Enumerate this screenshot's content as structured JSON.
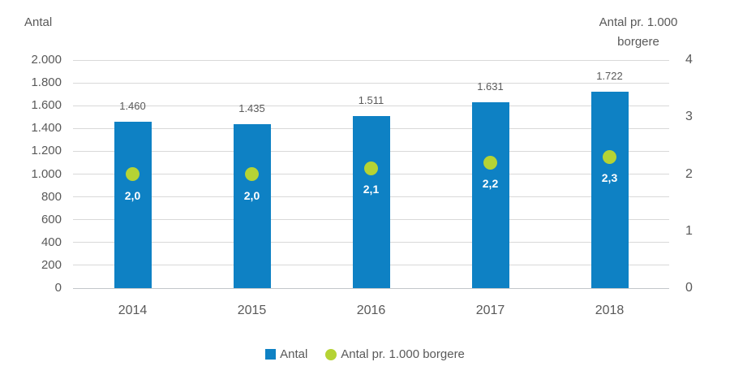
{
  "chart_data": {
    "type": "bar",
    "title": "",
    "categories": [
      "2014",
      "2015",
      "2016",
      "2017",
      "2018"
    ],
    "series": [
      {
        "name": "Antal",
        "type": "bar",
        "axis": "left",
        "values": [
          1460,
          1435,
          1511,
          1631,
          1722
        ],
        "labels": [
          "1.460",
          "1.435",
          "1.511",
          "1.631",
          "1.722"
        ],
        "color": "#0e81c4"
      },
      {
        "name": "Antal pr. 1.000 borgere",
        "type": "point",
        "axis": "right",
        "values": [
          2.0,
          2.0,
          2.1,
          2.2,
          2.3
        ],
        "labels": [
          "2,0",
          "2,0",
          "2,1",
          "2,2",
          "2,3"
        ],
        "color": "#b5d334"
      }
    ],
    "left_axis": {
      "title": "Antal",
      "min": 0,
      "max": 2000,
      "step": 200,
      "tick_labels": [
        "0",
        "200",
        "400",
        "600",
        "800",
        "1.000",
        "1.200",
        "1.400",
        "1.600",
        "1.800",
        "2.000"
      ]
    },
    "right_axis": {
      "title": "Antal pr. 1.000 borgere",
      "min": 0,
      "max": 4,
      "step": 1,
      "tick_labels": [
        "0",
        "1",
        "2",
        "3",
        "4"
      ]
    },
    "legend": [
      {
        "label": "Antal",
        "marker": "square",
        "color": "#0e81c4"
      },
      {
        "label": "Antal pr. 1.000 borgere",
        "marker": "circle",
        "color": "#b5d334"
      }
    ],
    "grid": true,
    "legend_position": "bottom",
    "colors": {
      "bar": "#0e81c4",
      "dot": "#b5d334",
      "text": "#595959",
      "gridline": "#d9d9d9",
      "dot_label": "#ffffff"
    }
  }
}
